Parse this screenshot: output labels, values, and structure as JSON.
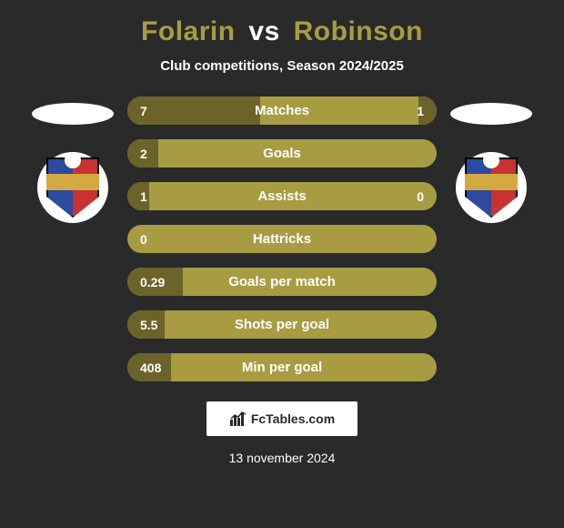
{
  "header": {
    "player1": "Folarin",
    "vs": "vs",
    "player2": "Robinson",
    "subtitle": "Club competitions, Season 2024/2025"
  },
  "colors": {
    "background": "#2a2a2a",
    "bar_bg": "#a89c42",
    "bar_fill": "#6b632a",
    "title_accent": "#a89c42",
    "text_white": "#ffffff",
    "badge_blue": "#2c4a9e",
    "badge_red": "#c83232",
    "badge_gold": "#d4a842"
  },
  "stats": [
    {
      "label": "Matches",
      "left_val": "7",
      "right_val": "1",
      "left_fill_pct": 43,
      "right_fill_pct": 6
    },
    {
      "label": "Goals",
      "left_val": "2",
      "right_val": "",
      "left_fill_pct": 10,
      "right_fill_pct": 0
    },
    {
      "label": "Assists",
      "left_val": "1",
      "right_val": "0",
      "left_fill_pct": 7,
      "right_fill_pct": 0
    },
    {
      "label": "Hattricks",
      "left_val": "0",
      "right_val": "",
      "left_fill_pct": 0,
      "right_fill_pct": 0
    },
    {
      "label": "Goals per match",
      "left_val": "0.29",
      "right_val": "",
      "left_fill_pct": 18,
      "right_fill_pct": 0
    },
    {
      "label": "Shots per goal",
      "left_val": "5.5",
      "right_val": "",
      "left_fill_pct": 12,
      "right_fill_pct": 0
    },
    {
      "label": "Min per goal",
      "left_val": "408",
      "right_val": "",
      "left_fill_pct": 14,
      "right_fill_pct": 0
    }
  ],
  "branding": {
    "text": "FcTables.com"
  },
  "footer": {
    "date": "13 november 2024"
  }
}
